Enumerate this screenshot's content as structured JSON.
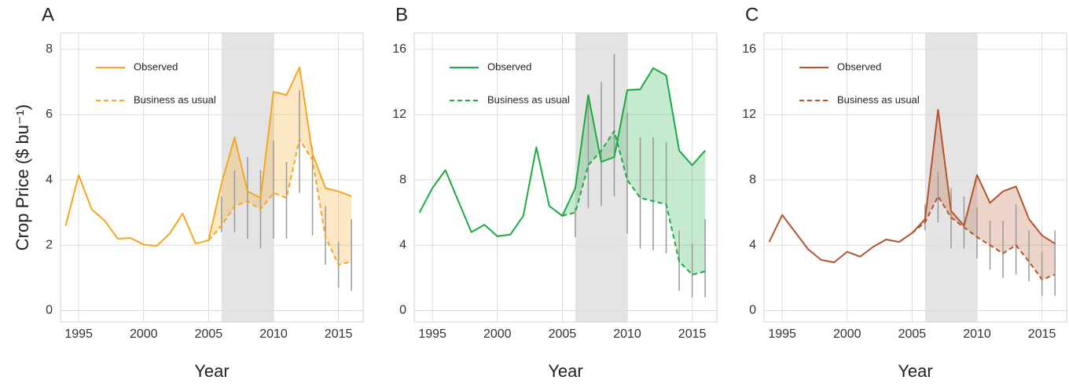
{
  "chart_data": [
    {
      "type": "line",
      "panel": "A",
      "ylabel": "Crop Price ($ bu⁻¹)",
      "xlabel": "Year",
      "x": [
        1994,
        1995,
        1996,
        1997,
        1998,
        1999,
        2000,
        2001,
        2002,
        2003,
        2004,
        2005,
        2006,
        2007,
        2008,
        2009,
        2010,
        2011,
        2012,
        2013,
        2014,
        2015,
        2016
      ],
      "xlim": [
        1993.6,
        2016.9
      ],
      "xticks": [
        1995,
        2000,
        2005,
        2010,
        2015
      ],
      "ylim": [
        -0.35,
        8.5
      ],
      "yticks": [
        0,
        2,
        4,
        6,
        8
      ],
      "grid": true,
      "shade": [
        2006,
        2010
      ],
      "shade_color": "#e4e4e4",
      "fill_color": "#f7a51c",
      "series": [
        {
          "name": "Observed",
          "color": "#f7a51c",
          "values": [
            2.6,
            4.15,
            3.1,
            2.75,
            2.2,
            2.22,
            2.02,
            1.98,
            2.35,
            2.97,
            2.05,
            2.15,
            3.9,
            5.3,
            3.65,
            3.45,
            6.7,
            6.6,
            7.45,
            4.8,
            3.75,
            3.65,
            3.5
          ]
        },
        {
          "name": "Business as usual",
          "color": "#f7a51c",
          "dashed": true,
          "values": [
            null,
            null,
            null,
            null,
            null,
            null,
            null,
            null,
            null,
            null,
            null,
            2.15,
            2.6,
            3.2,
            3.35,
            3.1,
            3.6,
            3.45,
            5.25,
            4.6,
            2.25,
            1.4,
            1.5
          ],
          "ci_low": [
            null,
            null,
            null,
            null,
            null,
            null,
            null,
            null,
            null,
            null,
            null,
            null,
            2.4,
            2.4,
            2.2,
            1.9,
            2.2,
            2.2,
            3.6,
            2.3,
            1.4,
            0.7,
            0.6
          ],
          "ci_high": [
            null,
            null,
            null,
            null,
            null,
            null,
            null,
            null,
            null,
            null,
            null,
            null,
            3.5,
            4.3,
            4.7,
            4.3,
            5.2,
            4.55,
            6.75,
            5.0,
            3.2,
            2.1,
            2.8
          ]
        }
      ]
    },
    {
      "type": "line",
      "panel": "B",
      "xlabel": "Year",
      "x": [
        1994,
        1995,
        1996,
        1997,
        1998,
        1999,
        2000,
        2001,
        2002,
        2003,
        2004,
        2005,
        2006,
        2007,
        2008,
        2009,
        2010,
        2011,
        2012,
        2013,
        2014,
        2015,
        2016
      ],
      "xlim": [
        1993.6,
        2016.9
      ],
      "xticks": [
        1995,
        2000,
        2005,
        2010,
        2015
      ],
      "ylim": [
        -0.7,
        17
      ],
      "yticks": [
        0,
        4,
        8,
        12,
        16
      ],
      "grid": true,
      "shade": [
        2006,
        2010
      ],
      "shade_color": "#e4e4e4",
      "fill_color": "#1aab40",
      "series": [
        {
          "name": "Observed",
          "color": "#1aab40",
          "values": [
            6.0,
            7.5,
            8.6,
            6.7,
            4.8,
            5.25,
            4.55,
            4.65,
            5.8,
            10.0,
            6.4,
            5.8,
            7.5,
            13.2,
            9.1,
            9.4,
            13.5,
            13.55,
            14.85,
            14.4,
            9.8,
            8.9,
            9.8
          ]
        },
        {
          "name": "Business as usual",
          "color": "#1aab40",
          "dashed": true,
          "values": [
            null,
            null,
            null,
            null,
            null,
            null,
            null,
            null,
            null,
            null,
            null,
            5.8,
            6.0,
            8.9,
            9.8,
            11.0,
            8.0,
            6.9,
            6.7,
            6.5,
            3.0,
            2.2,
            2.4
          ],
          "ci_low": [
            null,
            null,
            null,
            null,
            null,
            null,
            null,
            null,
            null,
            null,
            null,
            null,
            4.5,
            6.3,
            6.4,
            7.0,
            4.7,
            3.8,
            3.7,
            3.5,
            1.2,
            0.8,
            0.8
          ],
          "ci_high": [
            null,
            null,
            null,
            null,
            null,
            null,
            null,
            null,
            null,
            null,
            null,
            null,
            6.3,
            12.8,
            14.0,
            15.7,
            12.1,
            10.6,
            10.6,
            10.3,
            4.9,
            4.1,
            5.6
          ]
        }
      ]
    },
    {
      "type": "line",
      "panel": "C",
      "xlabel": "Year",
      "x": [
        1994,
        1995,
        1996,
        1997,
        1998,
        1999,
        2000,
        2001,
        2002,
        2003,
        2004,
        2005,
        2006,
        2007,
        2008,
        2009,
        2010,
        2011,
        2012,
        2013,
        2014,
        2015,
        2016
      ],
      "xlim": [
        1993.6,
        2016.9
      ],
      "xticks": [
        1995,
        2000,
        2005,
        2010,
        2015
      ],
      "ylim": [
        -0.7,
        17
      ],
      "yticks": [
        0,
        4,
        8,
        12,
        16
      ],
      "grid": true,
      "shade": [
        2006,
        2010
      ],
      "shade_color": "#e4e4e4",
      "fill_color": "#b5532a",
      "series": [
        {
          "name": "Observed",
          "color": "#b5532a",
          "values": [
            4.2,
            5.85,
            4.8,
            3.75,
            3.1,
            2.95,
            3.6,
            3.3,
            3.9,
            4.35,
            4.2,
            4.75,
            5.6,
            12.3,
            6.1,
            5.2,
            8.3,
            6.6,
            7.3,
            7.6,
            5.6,
            4.6,
            4.1
          ]
        },
        {
          "name": "Business as usual",
          "color": "#b5532a",
          "dashed": true,
          "values": [
            null,
            null,
            null,
            null,
            null,
            null,
            null,
            null,
            null,
            null,
            null,
            4.75,
            5.4,
            7.0,
            5.7,
            5.1,
            4.5,
            4.0,
            3.5,
            4.0,
            3.0,
            1.9,
            2.2
          ],
          "ci_low": [
            null,
            null,
            null,
            null,
            null,
            null,
            null,
            null,
            null,
            null,
            null,
            null,
            4.9,
            5.4,
            3.8,
            3.8,
            3.2,
            2.5,
            2.0,
            2.2,
            1.8,
            0.9,
            0.9
          ],
          "ci_high": [
            null,
            null,
            null,
            null,
            null,
            null,
            null,
            null,
            null,
            null,
            null,
            null,
            6.5,
            8.5,
            7.5,
            7.0,
            6.3,
            5.5,
            5.5,
            6.5,
            4.9,
            3.6,
            4.9
          ]
        }
      ]
    }
  ]
}
